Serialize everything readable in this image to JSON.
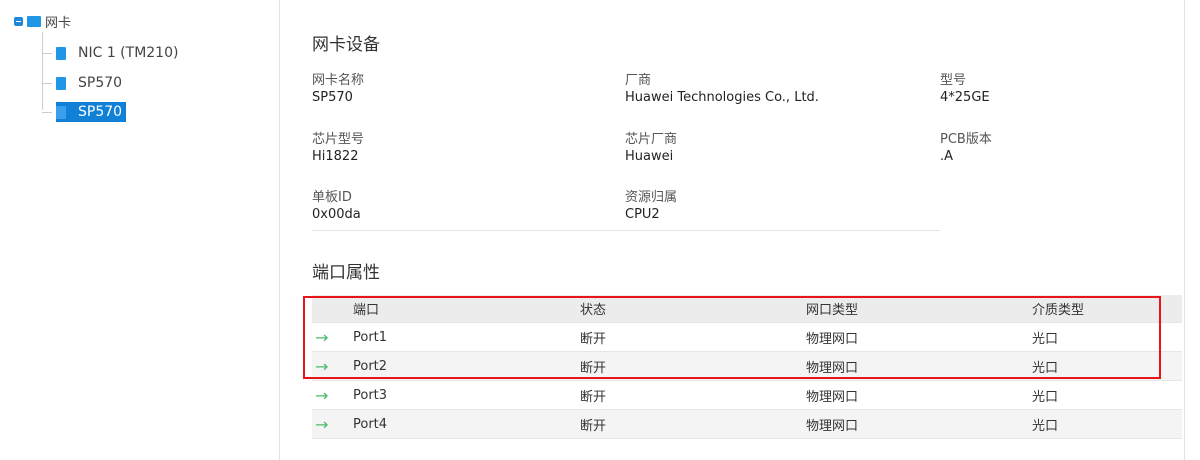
{
  "tree": {
    "root": "网卡",
    "nodes": [
      {
        "label": "NIC 1 (TM210)",
        "selected": false
      },
      {
        "label": "SP570",
        "selected": false
      },
      {
        "label": "SP570",
        "selected": true
      }
    ]
  },
  "device": {
    "title": "网卡设备",
    "fields": [
      {
        "label": "网卡名称",
        "value": "SP570"
      },
      {
        "label": "厂商",
        "value": "Huawei Technologies Co., Ltd."
      },
      {
        "label": "型号",
        "value": "4*25GE"
      },
      {
        "label": "芯片型号",
        "value": "Hi1822"
      },
      {
        "label": "芯片厂商",
        "value": "Huawei"
      },
      {
        "label": "PCB版本",
        "value": ".A"
      },
      {
        "label": "单板ID",
        "value": "0x00da"
      },
      {
        "label": "资源归属",
        "value": "CPU2"
      }
    ]
  },
  "ports": {
    "title": "端口属性",
    "headers": [
      "端口",
      "状态",
      "网口类型",
      "介质类型"
    ],
    "rows": [
      [
        "Port1",
        "断开",
        "物理网口",
        "光口"
      ],
      [
        "Port2",
        "断开",
        "物理网口",
        "光口"
      ],
      [
        "Port3",
        "断开",
        "物理网口",
        "光口"
      ],
      [
        "Port4",
        "断开",
        "物理网口",
        "光口"
      ]
    ],
    "row_icon": "arrow-right-icon",
    "highlight_color": "#e8141a"
  }
}
